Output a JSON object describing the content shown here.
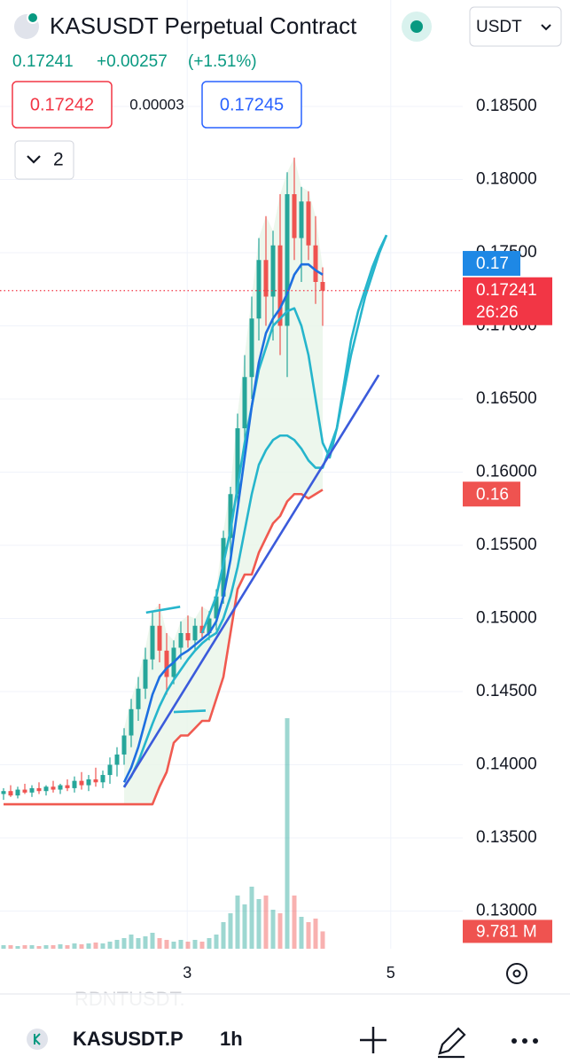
{
  "header": {
    "title": "KASUSDT Perpetual Contract",
    "currency": "USDT",
    "last_price": "0.17241",
    "change": "+0.00257",
    "change_percent": "(+1.51%)",
    "bid": "0.17242",
    "spread": "0.00003",
    "ask": "0.17245",
    "indicators": "2"
  },
  "chart_data": {
    "type": "candlestick",
    "x": [
      0,
      1,
      2,
      3,
      4,
      5,
      6,
      7,
      8,
      9,
      10,
      11,
      12,
      13,
      14,
      15,
      16,
      17,
      18,
      19,
      20,
      21,
      22,
      23,
      24,
      25,
      26,
      27,
      28,
      29,
      30,
      31,
      32,
      33,
      34,
      35,
      36,
      37,
      38,
      39,
      40,
      41,
      42,
      43,
      44,
      45
    ],
    "open": [
      0.138,
      0.1382,
      0.1379,
      0.1383,
      0.1381,
      0.1384,
      0.1382,
      0.1385,
      0.1383,
      0.1386,
      0.1384,
      0.1389,
      0.1386,
      0.139,
      0.1388,
      0.1393,
      0.14,
      0.1407,
      0.142,
      0.1438,
      0.1452,
      0.1472,
      0.1495,
      0.1478,
      0.146,
      0.148,
      0.149,
      0.1485,
      0.1495,
      0.149,
      0.15,
      0.1515,
      0.1555,
      0.1585,
      0.163,
      0.1665,
      0.1705,
      0.1745,
      0.172,
      0.1755,
      0.17,
      0.179,
      0.176,
      0.1785,
      0.1755,
      0.173
    ],
    "high": [
      0.1384,
      0.1386,
      0.1385,
      0.1387,
      0.1386,
      0.1388,
      0.1386,
      0.1389,
      0.1387,
      0.139,
      0.1392,
      0.1395,
      0.1393,
      0.1398,
      0.1396,
      0.1405,
      0.1412,
      0.1425,
      0.1445,
      0.146,
      0.148,
      0.1505,
      0.151,
      0.149,
      0.1485,
      0.1498,
      0.1502,
      0.15,
      0.1508,
      0.1505,
      0.152,
      0.156,
      0.159,
      0.164,
      0.168,
      0.172,
      0.176,
      0.1775,
      0.1765,
      0.179,
      0.1805,
      0.1815,
      0.1795,
      0.1792,
      0.1775,
      0.174
    ],
    "low": [
      0.1376,
      0.1378,
      0.1377,
      0.138,
      0.1378,
      0.138,
      0.1379,
      0.1381,
      0.138,
      0.1382,
      0.1381,
      0.1383,
      0.1382,
      0.1385,
      0.1384,
      0.1387,
      0.1392,
      0.14,
      0.1412,
      0.143,
      0.1445,
      0.1465,
      0.147,
      0.1448,
      0.1455,
      0.1472,
      0.148,
      0.1478,
      0.1486,
      0.1485,
      0.1492,
      0.151,
      0.154,
      0.1575,
      0.161,
      0.165,
      0.169,
      0.17,
      0.169,
      0.168,
      0.1665,
      0.1745,
      0.173,
      0.1745,
      0.1715,
      0.17
    ],
    "close": [
      0.1382,
      0.1379,
      0.1383,
      0.1381,
      0.1384,
      0.1382,
      0.1385,
      0.1383,
      0.1386,
      0.1384,
      0.1389,
      0.1386,
      0.139,
      0.1388,
      0.1393,
      0.14,
      0.1407,
      0.142,
      0.1438,
      0.1452,
      0.1472,
      0.1495,
      0.1478,
      0.146,
      0.148,
      0.149,
      0.1485,
      0.1495,
      0.149,
      0.15,
      0.1515,
      0.1555,
      0.1585,
      0.163,
      0.1665,
      0.1705,
      0.1745,
      0.172,
      0.1755,
      0.17,
      0.179,
      0.176,
      0.1785,
      0.1755,
      0.173,
      0.17241
    ],
    "volume": [
      2,
      2,
      1.5,
      2,
      2,
      1.5,
      2,
      2,
      2.5,
      2,
      3,
      2.5,
      3,
      3.5,
      3,
      4,
      5,
      6,
      8,
      6,
      7,
      9,
      6,
      5,
      4,
      5,
      4,
      5,
      4,
      6,
      8,
      15,
      20,
      30,
      25,
      35,
      28,
      30,
      22,
      20,
      130,
      30,
      18,
      15,
      17,
      9.781
    ],
    "vlim": [
      0,
      135
    ],
    "up_color": "#26a69a",
    "down_color": "#ef5350",
    "xlim": [
      -0.5,
      79.875
    ],
    "xticks": [
      {
        "value": 25.9,
        "label": "3"
      },
      {
        "value": 54.6,
        "label": "5"
      }
    ],
    "ylim": [
      0.1275,
      0.187
    ],
    "yticks": [
      {
        "value": 0.185,
        "label": "0.18500"
      },
      {
        "value": 0.18,
        "label": "0.18000"
      },
      {
        "value": 0.175,
        "label": "0.17500"
      },
      {
        "value": 0.17,
        "label": "0.17000"
      },
      {
        "value": 0.165,
        "label": "0.16500"
      },
      {
        "value": 0.16,
        "label": "0.16000"
      },
      {
        "value": 0.155,
        "label": "0.15500"
      },
      {
        "value": 0.15,
        "label": "0.15000"
      },
      {
        "value": 0.145,
        "label": "0.14500"
      },
      {
        "value": 0.14,
        "label": "0.14000"
      },
      {
        "value": 0.135,
        "label": "0.13500"
      },
      {
        "value": 0.13,
        "label": "0.13000"
      }
    ],
    "grid": true,
    "lines": [
      {
        "color": "#f05a50",
        "x": [
          0,
          21,
          22,
          23,
          24,
          25,
          26,
          27,
          28,
          29,
          30,
          31,
          32,
          33,
          34,
          35,
          36,
          37,
          38,
          39,
          40,
          41,
          42,
          43,
          44,
          45
        ],
        "values": [
          0.1373,
          0.1373,
          0.1385,
          0.1395,
          0.1415,
          0.142,
          0.142,
          0.1425,
          0.143,
          0.143,
          0.1445,
          0.146,
          0.149,
          0.152,
          0.153,
          0.153,
          0.1545,
          0.1555,
          0.1565,
          0.157,
          0.158,
          0.1585,
          0.1585,
          0.1582,
          0.1585,
          0.1588
        ]
      },
      {
        "color": "#26b5cc",
        "x": [
          17,
          18,
          19,
          20,
          21,
          22,
          23,
          24,
          25,
          26,
          27,
          28,
          29,
          30,
          31,
          32,
          33,
          34,
          35,
          36,
          37,
          38,
          39,
          40,
          41,
          42,
          43,
          44,
          45,
          47,
          49,
          51,
          53,
          54
        ],
        "values": [
          0.1385,
          0.1392,
          0.1402,
          0.1415,
          0.1428,
          0.144,
          0.145,
          0.1458,
          0.1465,
          0.1472,
          0.1478,
          0.1483,
          0.1487,
          0.149,
          0.15,
          0.1515,
          0.1535,
          0.156,
          0.1585,
          0.1605,
          0.1615,
          0.1622,
          0.1625,
          0.1625,
          0.1622,
          0.1616,
          0.1608,
          0.1603,
          0.1603,
          0.163,
          0.168,
          0.172,
          0.175,
          0.1762
        ]
      },
      {
        "color": "#26b5cc",
        "x": [
          28,
          30,
          32,
          34,
          36,
          38,
          40,
          41,
          42,
          43,
          44,
          45,
          46,
          47,
          48,
          49,
          50,
          51,
          52,
          53,
          54
        ],
        "values": [
          0.149,
          0.1515,
          0.156,
          0.162,
          0.167,
          0.17,
          0.171,
          0.1712,
          0.17,
          0.168,
          0.165,
          0.162,
          0.161,
          0.163,
          0.166,
          0.169,
          0.171,
          0.1725,
          0.174,
          0.1752,
          0.1762
        ]
      },
      {
        "color": "#1e6fe0",
        "x": [
          17,
          18,
          19,
          20,
          21,
          22,
          23,
          24,
          25,
          26,
          27,
          28,
          29,
          30,
          31,
          32,
          33,
          34,
          35,
          36,
          37,
          38,
          39,
          40,
          41,
          42,
          43,
          44,
          45
        ],
        "values": [
          0.1388,
          0.1398,
          0.1412,
          0.143,
          0.1448,
          0.146,
          0.1466,
          0.147,
          0.1475,
          0.1478,
          0.1482,
          0.1486,
          0.149,
          0.1498,
          0.1515,
          0.154,
          0.1575,
          0.161,
          0.1645,
          0.1675,
          0.1695,
          0.1705,
          0.1712,
          0.1722,
          0.1735,
          0.1742,
          0.1742,
          0.1738,
          0.1735
        ]
      },
      {
        "color": "#3b5bdb",
        "x": [
          17,
          52.9
        ],
        "values": [
          0.13846,
          0.16664
        ]
      },
      {
        "color": "#26b5cc",
        "x": [
          20.1,
          24.9
        ],
        "values": [
          0.1504,
          0.1508
        ]
      },
      {
        "color": "#26b5cc",
        "x": [
          24,
          28.5
        ],
        "values": [
          0.1436,
          0.1437
        ]
      }
    ],
    "price_labels": [
      {
        "value": 0.17427,
        "label": "0.17",
        "color": "#1e88e5"
      },
      {
        "value": 0.1585,
        "label": "0.16",
        "color": "#ef5350"
      }
    ],
    "current_price": {
      "value": 0.17241,
      "countdown": "26:26",
      "color": "#f23645"
    },
    "volume_label": {
      "value": 9.781,
      "label": "9.781 M",
      "color": "#ef5350"
    }
  },
  "footer": {
    "faded_symbol": "RDNTUSDT.",
    "symbol": "KASUSDT.P",
    "interval": "1h"
  }
}
